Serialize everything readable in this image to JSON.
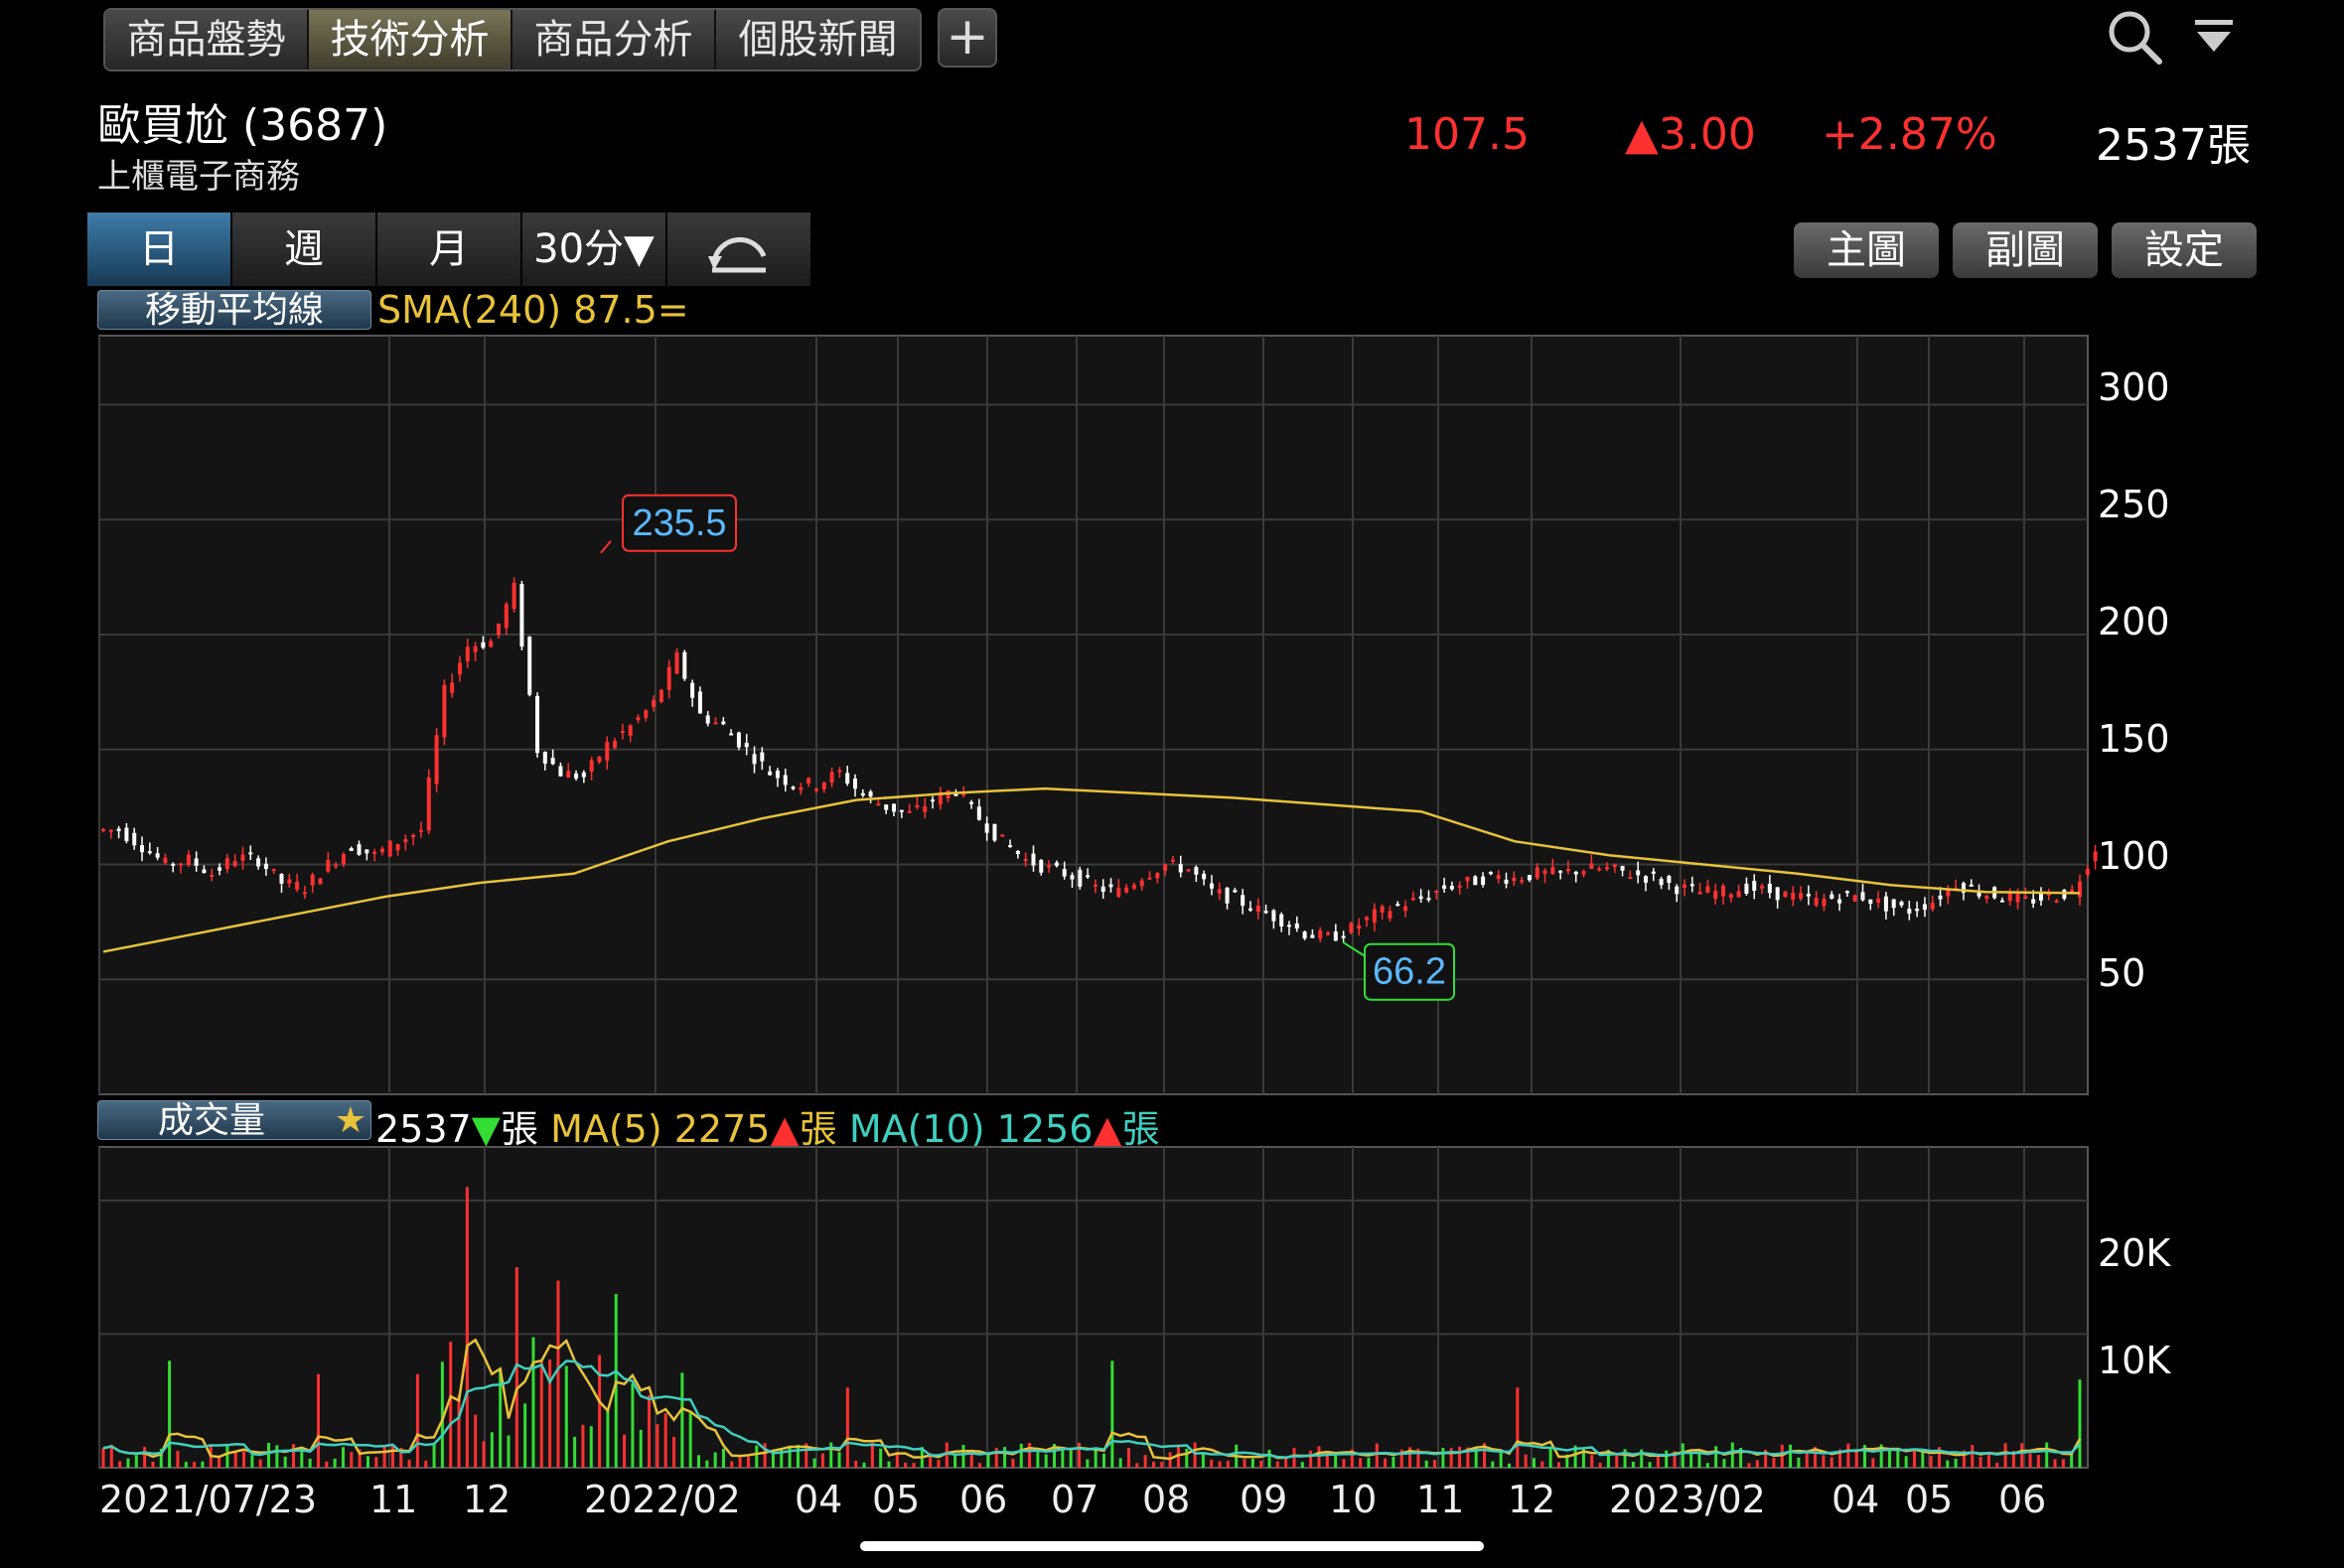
{
  "tabs": [
    "商品盤勢",
    "技術分析",
    "商品分析",
    "個股新聞"
  ],
  "active_tab": 1,
  "add_tab_label": "+",
  "icons": {
    "search": "search-icon",
    "dropdown": "triangle-down-icon",
    "rotate": "rotate-icon",
    "plus": "plus-icon",
    "star": "star-icon"
  },
  "stock": {
    "name": "歐買尬 (3687)",
    "market": "上櫃電子商務",
    "price": "107.5",
    "change": "▲3.00",
    "change_pct": "+2.87%",
    "volume": "2537張"
  },
  "periods": [
    "日",
    "週",
    "月",
    "30分▼"
  ],
  "active_period": 0,
  "right_buttons": {
    "main": "主圖",
    "sub": "副圖",
    "settings": "設定"
  },
  "colors": {
    "up": "#ff3030",
    "down": "#ffffff",
    "sma": "#e8c23a",
    "ma5": "#e8c23a",
    "ma10": "#3ecfc0",
    "vol_up": "#ff3030",
    "vol_down": "#33dd33",
    "grid": "#3a3a3a",
    "accent_blue": "#5ab8ff"
  },
  "price_panel": {
    "label": "移動平均線",
    "sma_text": "SMA(240) 87.5=",
    "y_ticks": [
      "300",
      "250",
      "200",
      "150",
      "100",
      "50"
    ],
    "high_label": "235.5",
    "low_label": "66.2"
  },
  "volume_panel": {
    "label": "成交量",
    "star": "★",
    "vol_text": "2537",
    "vol_arrow": "▼",
    "unit": "張",
    "ma5_text": "MA(5) 2275",
    "ma10_text": "MA(10) 1256",
    "up_arrow": "▲",
    "y_ticks": [
      "20K",
      "10K"
    ]
  },
  "x_axis": [
    "2021/07/23",
    "11",
    "12",
    "2022/02",
    "04",
    "05",
    "06",
    "07",
    "08",
    "09",
    "10",
    "11",
    "12",
    "2023/02",
    "04",
    "05",
    "06"
  ],
  "chart_data": {
    "type": "line",
    "title": "",
    "y_range": [
      0,
      300
    ],
    "series": [
      {
        "name": "price_close",
        "values": [
          115,
          108,
          100,
          102,
          96,
          103,
          102,
          92,
          90,
          100,
          108,
          104,
          110,
          115,
          175,
          195,
          197,
          220,
          150,
          140,
          138,
          152,
          160,
          170,
          190,
          165,
          160,
          150,
          140,
          135,
          135,
          140,
          130,
          125,
          122,
          128,
          133,
          120,
          110,
          102,
          98,
          95,
          90,
          88,
          95,
          100,
          98,
          88,
          85,
          80,
          76,
          70,
          68,
          72,
          78,
          82,
          85,
          90,
          92,
          95,
          94,
          96,
          96,
          98,
          98,
          96,
          94,
          90,
          88,
          88,
          90,
          88,
          86,
          84,
          86,
          86,
          82,
          80,
          84,
          92,
          88,
          86,
          84,
          86,
          88,
          107.5
        ]
      },
      {
        "name": "SMA(240)",
        "values": [
          62,
          70,
          78,
          86,
          92,
          96,
          110,
          120,
          128,
          131,
          133,
          131,
          129,
          126,
          123,
          110,
          104,
          100,
          96,
          91,
          88,
          87.5
        ]
      }
    ],
    "high": 235.5,
    "low": 66.2,
    "sma_latest": 87.5,
    "volume": {
      "unit": "張",
      "y_ticks": [
        "10K",
        "20K"
      ],
      "latest": 2537,
      "ma5_latest": 2275,
      "ma10_latest": 1256,
      "spikes": [
        {
          "x_index": 8,
          "value": 8000
        },
        {
          "x_index": 26,
          "value": 7000
        },
        {
          "x_index": 38,
          "value": 7000
        },
        {
          "x_index": 44,
          "value": 21000
        },
        {
          "x_index": 50,
          "value": 15000
        },
        {
          "x_index": 55,
          "value": 14000
        },
        {
          "x_index": 62,
          "value": 13000
        },
        {
          "x_index": 90,
          "value": 6000
        },
        {
          "x_index": 122,
          "value": 8000
        },
        {
          "x_index": 171,
          "value": 6000
        }
      ]
    }
  }
}
